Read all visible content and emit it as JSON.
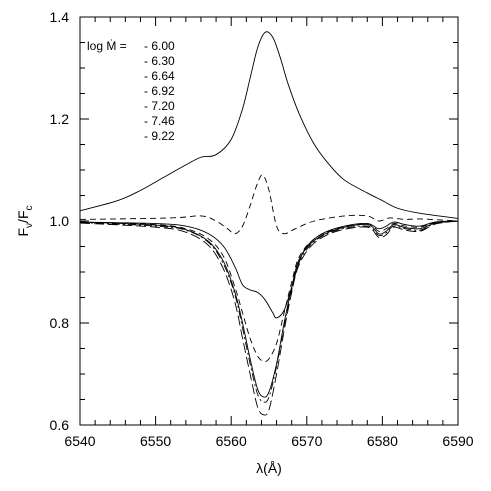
{
  "chart_data": {
    "type": "line",
    "xlim": [
      6540,
      6590
    ],
    "ylim": [
      0.6,
      1.4
    ],
    "xticks": [
      6540,
      6550,
      6560,
      6570,
      6580,
      6590
    ],
    "yticks": [
      0.6,
      0.8,
      1.0,
      1.2,
      1.4
    ],
    "xtick_labels": [
      "6540",
      "6550",
      "6560",
      "6570",
      "6580",
      "6590"
    ],
    "ytick_labels": [
      "0.6",
      "0.8",
      "1.0",
      "1.2",
      "1.4"
    ],
    "xlabel": "λ(Å)",
    "ylabel_main": "F",
    "ylabel_sub1": "ν",
    "ylabel_slash": "/F",
    "ylabel_sub2": "c",
    "legend_prefix": "log Ṁ = ",
    "grid": false,
    "series": [
      {
        "name": "- 6.00",
        "dash": "solid",
        "points": [
          [
            6540,
            1.02
          ],
          [
            6545,
            1.04
          ],
          [
            6548,
            1.06
          ],
          [
            6551,
            1.085
          ],
          [
            6554,
            1.11
          ],
          [
            6556,
            1.125
          ],
          [
            6558,
            1.13
          ],
          [
            6560,
            1.16
          ],
          [
            6561.5,
            1.22
          ],
          [
            6562.5,
            1.28
          ],
          [
            6563.5,
            1.34
          ],
          [
            6564.5,
            1.37
          ],
          [
            6565.5,
            1.36
          ],
          [
            6566.5,
            1.32
          ],
          [
            6567.5,
            1.27
          ],
          [
            6569,
            1.21
          ],
          [
            6571,
            1.15
          ],
          [
            6573,
            1.11
          ],
          [
            6575,
            1.08
          ],
          [
            6578,
            1.055
          ],
          [
            6580,
            1.04
          ],
          [
            6582,
            1.025
          ],
          [
            6585,
            1.015
          ],
          [
            6590,
            1.005
          ]
        ]
      },
      {
        "name": "- 6.30",
        "dash": "dashed",
        "points": [
          [
            6540,
            1.003
          ],
          [
            6552,
            1.006
          ],
          [
            6556,
            1.01
          ],
          [
            6558,
            1.0
          ],
          [
            6559.5,
            0.985
          ],
          [
            6560.5,
            0.975
          ],
          [
            6561.5,
            0.99
          ],
          [
            6562.5,
            1.03
          ],
          [
            6563.5,
            1.075
          ],
          [
            6564.2,
            1.09
          ],
          [
            6565,
            1.06
          ],
          [
            6566,
            0.99
          ],
          [
            6567,
            0.975
          ],
          [
            6568.5,
            0.985
          ],
          [
            6571,
            1.0
          ],
          [
            6575,
            1.01
          ],
          [
            6578,
            1.01
          ],
          [
            6579.5,
            1.0
          ],
          [
            6581,
            1.006
          ],
          [
            6583,
            1.003
          ],
          [
            6585,
            1.004
          ],
          [
            6590,
            1.0
          ]
        ]
      },
      {
        "name": "- 6.64",
        "dash": "solid",
        "points": [
          [
            6540,
            0.998
          ],
          [
            6550,
            0.995
          ],
          [
            6554,
            0.99
          ],
          [
            6557,
            0.975
          ],
          [
            6559,
            0.95
          ],
          [
            6560.5,
            0.91
          ],
          [
            6561.5,
            0.875
          ],
          [
            6562.5,
            0.865
          ],
          [
            6563.5,
            0.86
          ],
          [
            6564.5,
            0.845
          ],
          [
            6565.5,
            0.82
          ],
          [
            6566,
            0.81
          ],
          [
            6567,
            0.825
          ],
          [
            6568,
            0.87
          ],
          [
            6569,
            0.92
          ],
          [
            6570,
            0.95
          ],
          [
            6572,
            0.975
          ],
          [
            6575,
            0.99
          ],
          [
            6578,
            0.995
          ],
          [
            6579.5,
            0.985
          ],
          [
            6580.5,
            0.99
          ],
          [
            6581.5,
            0.998
          ],
          [
            6583,
            0.993
          ],
          [
            6585,
            0.99
          ],
          [
            6587,
            0.998
          ],
          [
            6590,
            1.0
          ]
        ]
      },
      {
        "name": "- 6.92",
        "dash": "dashed",
        "points": [
          [
            6540,
            0.998
          ],
          [
            6550,
            0.993
          ],
          [
            6554,
            0.985
          ],
          [
            6557,
            0.965
          ],
          [
            6559,
            0.93
          ],
          [
            6560.5,
            0.87
          ],
          [
            6561.5,
            0.82
          ],
          [
            6562.5,
            0.77
          ],
          [
            6563.5,
            0.735
          ],
          [
            6564.3,
            0.725
          ],
          [
            6565,
            0.73
          ],
          [
            6566,
            0.76
          ],
          [
            6567,
            0.82
          ],
          [
            6568,
            0.88
          ],
          [
            6569,
            0.93
          ],
          [
            6571,
            0.965
          ],
          [
            6574,
            0.985
          ],
          [
            6578,
            0.995
          ],
          [
            6579.5,
            0.98
          ],
          [
            6580.5,
            0.985
          ],
          [
            6581.5,
            0.995
          ],
          [
            6583,
            0.99
          ],
          [
            6585,
            0.988
          ],
          [
            6587,
            0.997
          ],
          [
            6590,
            1.0
          ]
        ]
      },
      {
        "name": "- 7.20",
        "dash": "solid",
        "points": [
          [
            6540,
            0.998
          ],
          [
            6550,
            0.992
          ],
          [
            6554,
            0.983
          ],
          [
            6557,
            0.96
          ],
          [
            6559,
            0.92
          ],
          [
            6560.5,
            0.86
          ],
          [
            6561.5,
            0.8
          ],
          [
            6562.5,
            0.73
          ],
          [
            6563.5,
            0.67
          ],
          [
            6564.3,
            0.655
          ],
          [
            6565,
            0.665
          ],
          [
            6566,
            0.72
          ],
          [
            6567,
            0.8
          ],
          [
            6568,
            0.87
          ],
          [
            6569,
            0.925
          ],
          [
            6571,
            0.962
          ],
          [
            6574,
            0.984
          ],
          [
            6578,
            0.993
          ],
          [
            6579.5,
            0.975
          ],
          [
            6580.5,
            0.98
          ],
          [
            6581.5,
            0.993
          ],
          [
            6583,
            0.987
          ],
          [
            6585,
            0.985
          ],
          [
            6587,
            0.996
          ],
          [
            6590,
            1.0
          ]
        ]
      },
      {
        "name": "- 7.46",
        "dash": "dashdot",
        "points": [
          [
            6540,
            0.997
          ],
          [
            6550,
            0.99
          ],
          [
            6554,
            0.982
          ],
          [
            6557,
            0.958
          ],
          [
            6559,
            0.915
          ],
          [
            6560.5,
            0.855
          ],
          [
            6561.5,
            0.79
          ],
          [
            6562.5,
            0.72
          ],
          [
            6563.5,
            0.66
          ],
          [
            6564.3,
            0.645
          ],
          [
            6565,
            0.655
          ],
          [
            6566,
            0.715
          ],
          [
            6567,
            0.795
          ],
          [
            6568,
            0.865
          ],
          [
            6569,
            0.92
          ],
          [
            6571,
            0.96
          ],
          [
            6574,
            0.982
          ],
          [
            6578,
            0.99
          ],
          [
            6579.5,
            0.972
          ],
          [
            6580.5,
            0.977
          ],
          [
            6581.5,
            0.99
          ],
          [
            6583,
            0.985
          ],
          [
            6585,
            0.982
          ],
          [
            6587,
            0.995
          ],
          [
            6590,
            1.0
          ]
        ]
      },
      {
        "name": "- 9.22",
        "dash": "longdash",
        "points": [
          [
            6540,
            0.996
          ],
          [
            6550,
            0.988
          ],
          [
            6554,
            0.978
          ],
          [
            6557,
            0.952
          ],
          [
            6559,
            0.905
          ],
          [
            6560.5,
            0.84
          ],
          [
            6561.5,
            0.77
          ],
          [
            6562.5,
            0.7
          ],
          [
            6563.5,
            0.635
          ],
          [
            6564.3,
            0.62
          ],
          [
            6565,
            0.63
          ],
          [
            6566,
            0.7
          ],
          [
            6567,
            0.785
          ],
          [
            6568,
            0.86
          ],
          [
            6569,
            0.915
          ],
          [
            6571,
            0.957
          ],
          [
            6574,
            0.98
          ],
          [
            6578,
            0.988
          ],
          [
            6579.5,
            0.968
          ],
          [
            6580.5,
            0.973
          ],
          [
            6581.5,
            0.988
          ],
          [
            6583,
            0.982
          ],
          [
            6585,
            0.98
          ],
          [
            6587,
            0.994
          ],
          [
            6590,
            1.0
          ]
        ]
      }
    ]
  }
}
